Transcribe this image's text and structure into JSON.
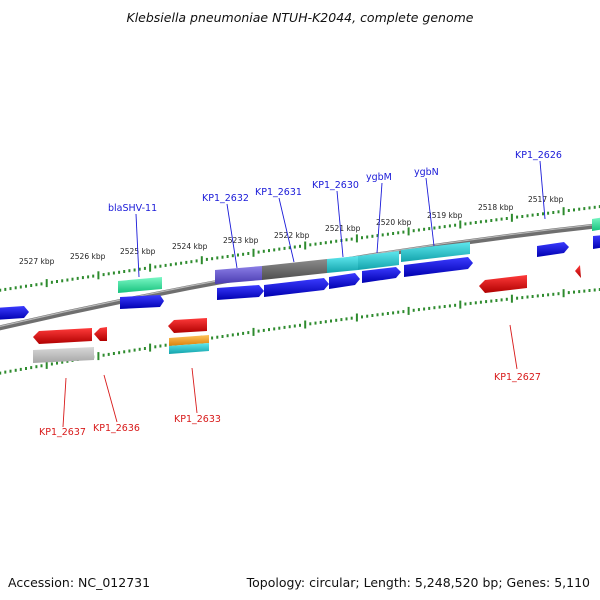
{
  "title": "Klebsiella pneumoniae NTUH-K2044, complete genome",
  "footer": {
    "accession": "Accession: NC_012731",
    "topology": "Topology: circular; Length: 5,248,520 bp; Genes: 5,110"
  },
  "kbp_labels": [
    "2527 kbp",
    "2526 kbp",
    "2525 kbp",
    "2524 kbp",
    "2523 kbp",
    "2522 kbp",
    "2521 kbp",
    "2520 kbp",
    "2519 kbp",
    "2518 kbp",
    "2517 kbp"
  ],
  "forward_gene_labels": [
    "blaSHV-11",
    "KP1_2632",
    "KP1_2631",
    "KP1_2630",
    "ygbM",
    "ygbN",
    "KP1_2626"
  ],
  "reverse_gene_labels": [
    "KP1_2637",
    "KP1_2636",
    "KP1_2633",
    "KP1_2627"
  ],
  "colors": {
    "forward_strand": "#0000e6",
    "reverse_strand": "#e60000",
    "ticks": "#2e8b2e",
    "backbone": "#777777",
    "teal": "#27c2c9",
    "green": "#33e0a0",
    "purple": "#6a5acd",
    "gray": "#6e6e6e",
    "orange": "#f0a020"
  }
}
